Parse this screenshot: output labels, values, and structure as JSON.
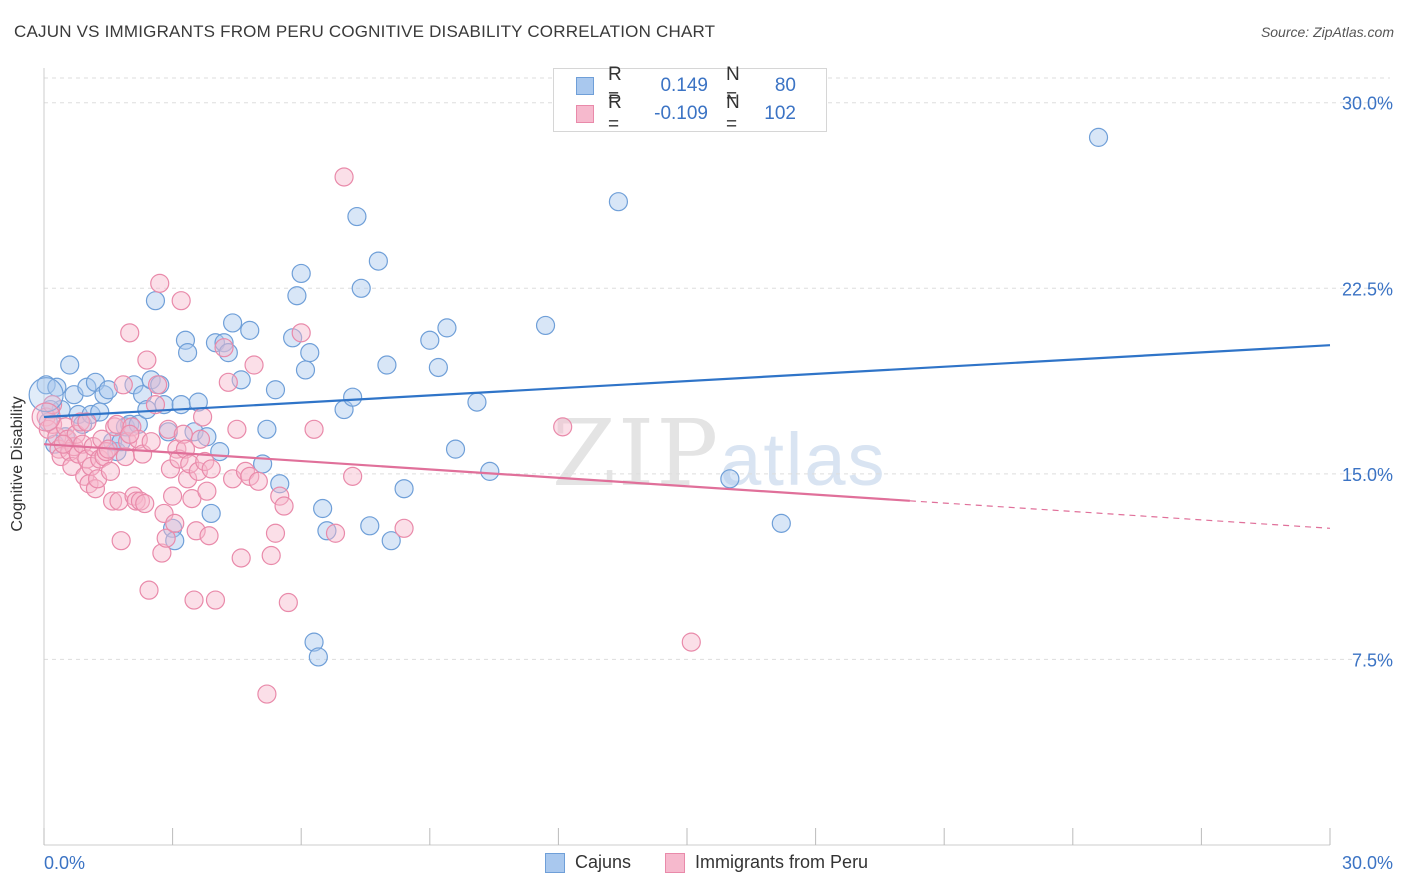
{
  "title": "CAJUN VS IMMIGRANTS FROM PERU COGNITIVE DISABILITY CORRELATION CHART",
  "source": "Source: ZipAtlas.com",
  "watermark": {
    "zip": "ZIP",
    "atlas": "atlas"
  },
  "legend_top": {
    "rows": [
      {
        "r_label": "R =",
        "r_value": "0.149",
        "n_label": "N =",
        "n_value": "80"
      },
      {
        "r_label": "R =",
        "r_value": "-0.109",
        "n_label": "N =",
        "n_value": "102"
      }
    ]
  },
  "legend_bottom": {
    "series1": "Cajuns",
    "series2": "Immigrants from Peru"
  },
  "colors": {
    "blue_fill": "#a9c8ee",
    "blue_stroke": "#6f9fd8",
    "blue_line": "#2f74c8",
    "pink_fill": "#f6b9cd",
    "pink_stroke": "#e98aaa",
    "pink_line": "#e0709a",
    "axis_text": "#3b73c4",
    "grid": "#dddddd"
  },
  "chart_data": {
    "type": "scatter",
    "title": "CAJUN VS IMMIGRANTS FROM PERU COGNITIVE DISABILITY CORRELATION CHART",
    "xlabel": "",
    "ylabel": "Cognitive Disability",
    "xlim": [
      0,
      30
    ],
    "ylim": [
      0,
      30
    ],
    "x_tick_labels": [
      "0.0%",
      "30.0%"
    ],
    "y_ticks": [
      7.5,
      15.0,
      22.5,
      30.0
    ],
    "y_tick_labels": [
      "7.5%",
      "15.0%",
      "22.5%",
      "30.0%"
    ],
    "grid": true,
    "series": [
      {
        "name": "Cajuns",
        "R": 0.149,
        "N": 80,
        "trend": {
          "x0": 0,
          "y0": 17.3,
          "x1": 30,
          "y1": 20.2,
          "dashed_from": null
        },
        "points": [
          [
            0.05,
            18.6
          ],
          [
            0.1,
            17.1
          ],
          [
            0.3,
            18.5
          ],
          [
            0.4,
            17.6
          ],
          [
            0.5,
            16.5
          ],
          [
            0.6,
            19.4
          ],
          [
            0.7,
            18.2
          ],
          [
            0.8,
            17.4
          ],
          [
            0.9,
            17.0
          ],
          [
            1.0,
            18.5
          ],
          [
            1.1,
            17.4
          ],
          [
            1.2,
            18.7
          ],
          [
            1.3,
            17.5
          ],
          [
            1.4,
            18.2
          ],
          [
            1.5,
            18.4
          ],
          [
            1.6,
            16.3
          ],
          [
            1.7,
            15.9
          ],
          [
            1.8,
            16.3
          ],
          [
            1.9,
            16.9
          ],
          [
            2.0,
            17.0
          ],
          [
            2.1,
            18.6
          ],
          [
            2.2,
            17.0
          ],
          [
            2.3,
            18.2
          ],
          [
            2.4,
            17.6
          ],
          [
            2.5,
            18.8
          ],
          [
            2.6,
            22.0
          ],
          [
            2.7,
            18.6
          ],
          [
            2.8,
            17.8
          ],
          [
            2.9,
            16.7
          ],
          [
            3.0,
            12.8
          ],
          [
            3.05,
            12.3
          ],
          [
            3.2,
            17.8
          ],
          [
            3.3,
            20.4
          ],
          [
            3.35,
            19.9
          ],
          [
            3.5,
            16.7
          ],
          [
            3.6,
            17.9
          ],
          [
            3.8,
            16.5
          ],
          [
            3.9,
            13.4
          ],
          [
            4.0,
            20.3
          ],
          [
            4.1,
            15.9
          ],
          [
            4.2,
            20.3
          ],
          [
            4.3,
            19.9
          ],
          [
            4.4,
            21.1
          ],
          [
            4.6,
            18.8
          ],
          [
            4.8,
            20.8
          ],
          [
            5.1,
            15.4
          ],
          [
            5.2,
            16.8
          ],
          [
            5.4,
            18.4
          ],
          [
            5.5,
            14.6
          ],
          [
            5.8,
            20.5
          ],
          [
            5.9,
            22.2
          ],
          [
            6.0,
            23.1
          ],
          [
            6.1,
            19.2
          ],
          [
            6.2,
            19.9
          ],
          [
            6.3,
            8.2
          ],
          [
            6.4,
            7.6
          ],
          [
            6.5,
            13.6
          ],
          [
            6.6,
            12.7
          ],
          [
            7.0,
            17.6
          ],
          [
            7.2,
            18.1
          ],
          [
            7.3,
            25.4
          ],
          [
            7.4,
            22.5
          ],
          [
            7.6,
            12.9
          ],
          [
            7.8,
            23.6
          ],
          [
            8.0,
            19.4
          ],
          [
            8.1,
            12.3
          ],
          [
            8.4,
            14.4
          ],
          [
            9.0,
            20.4
          ],
          [
            9.2,
            19.3
          ],
          [
            9.4,
            20.9
          ],
          [
            9.6,
            16.0
          ],
          [
            10.1,
            17.9
          ],
          [
            10.4,
            15.1
          ],
          [
            11.7,
            21.0
          ],
          [
            13.4,
            26.0
          ],
          [
            16.0,
            14.8
          ],
          [
            17.2,
            13.0
          ],
          [
            24.6,
            28.6
          ],
          [
            0.15,
            17.6
          ],
          [
            0.25,
            16.2
          ]
        ]
      },
      {
        "name": "Immigrants from Peru",
        "R": -0.109,
        "N": 102,
        "trend": {
          "x0": 0,
          "y0": 16.2,
          "x1": 30,
          "y1": 12.8,
          "dashed_from": 20.2
        },
        "points": [
          [
            0.05,
            17.3
          ],
          [
            0.1,
            16.8
          ],
          [
            0.2,
            17.0
          ],
          [
            0.3,
            16.5
          ],
          [
            0.35,
            16.0
          ],
          [
            0.4,
            15.7
          ],
          [
            0.5,
            16.9
          ],
          [
            0.55,
            16.4
          ],
          [
            0.6,
            15.9
          ],
          [
            0.65,
            15.3
          ],
          [
            0.7,
            16.1
          ],
          [
            0.75,
            16.6
          ],
          [
            0.8,
            15.8
          ],
          [
            0.85,
            17.1
          ],
          [
            0.9,
            16.2
          ],
          [
            0.95,
            14.9
          ],
          [
            1.0,
            15.6
          ],
          [
            1.05,
            14.6
          ],
          [
            1.1,
            15.3
          ],
          [
            1.15,
            16.1
          ],
          [
            1.2,
            14.4
          ],
          [
            1.25,
            14.8
          ],
          [
            1.3,
            15.6
          ],
          [
            1.35,
            16.4
          ],
          [
            1.4,
            15.7
          ],
          [
            1.45,
            15.9
          ],
          [
            1.5,
            16.0
          ],
          [
            1.55,
            15.1
          ],
          [
            1.6,
            13.9
          ],
          [
            1.65,
            16.9
          ],
          [
            1.7,
            17.0
          ],
          [
            1.75,
            13.9
          ],
          [
            1.8,
            12.3
          ],
          [
            1.85,
            18.6
          ],
          [
            1.9,
            15.7
          ],
          [
            1.95,
            16.3
          ],
          [
            2.0,
            20.7
          ],
          [
            2.05,
            16.9
          ],
          [
            2.1,
            14.1
          ],
          [
            2.15,
            13.9
          ],
          [
            2.2,
            16.4
          ],
          [
            2.25,
            13.9
          ],
          [
            2.3,
            15.8
          ],
          [
            2.35,
            13.8
          ],
          [
            2.4,
            19.6
          ],
          [
            2.45,
            10.3
          ],
          [
            2.5,
            16.3
          ],
          [
            2.6,
            17.8
          ],
          [
            2.65,
            18.6
          ],
          [
            2.7,
            22.7
          ],
          [
            2.75,
            11.8
          ],
          [
            2.8,
            13.4
          ],
          [
            2.85,
            12.4
          ],
          [
            2.9,
            16.8
          ],
          [
            2.95,
            15.2
          ],
          [
            3.0,
            14.1
          ],
          [
            3.05,
            13.0
          ],
          [
            3.1,
            16.0
          ],
          [
            3.15,
            15.6
          ],
          [
            3.2,
            22.0
          ],
          [
            3.25,
            16.6
          ],
          [
            3.3,
            16.0
          ],
          [
            3.35,
            14.8
          ],
          [
            3.4,
            15.4
          ],
          [
            3.45,
            14.0
          ],
          [
            3.5,
            9.9
          ],
          [
            3.55,
            12.7
          ],
          [
            3.6,
            15.1
          ],
          [
            3.65,
            16.4
          ],
          [
            3.7,
            17.3
          ],
          [
            3.75,
            15.5
          ],
          [
            3.8,
            14.3
          ],
          [
            3.85,
            12.5
          ],
          [
            3.9,
            15.2
          ],
          [
            4.0,
            9.9
          ],
          [
            4.2,
            20.1
          ],
          [
            4.3,
            18.7
          ],
          [
            4.4,
            14.8
          ],
          [
            4.5,
            16.8
          ],
          [
            4.6,
            11.6
          ],
          [
            4.7,
            15.1
          ],
          [
            4.8,
            14.9
          ],
          [
            4.9,
            19.4
          ],
          [
            5.0,
            14.7
          ],
          [
            5.2,
            6.1
          ],
          [
            5.3,
            11.7
          ],
          [
            5.4,
            12.6
          ],
          [
            5.5,
            14.1
          ],
          [
            5.6,
            13.7
          ],
          [
            5.7,
            9.8
          ],
          [
            6.0,
            20.7
          ],
          [
            6.3,
            16.8
          ],
          [
            6.8,
            12.6
          ],
          [
            7.0,
            27.0
          ],
          [
            7.2,
            14.9
          ],
          [
            8.4,
            12.8
          ],
          [
            12.1,
            16.9
          ],
          [
            15.1,
            8.2
          ],
          [
            0.2,
            17.8
          ],
          [
            0.45,
            16.2
          ],
          [
            1.0,
            17.1
          ],
          [
            2.0,
            16.6
          ]
        ]
      }
    ]
  }
}
